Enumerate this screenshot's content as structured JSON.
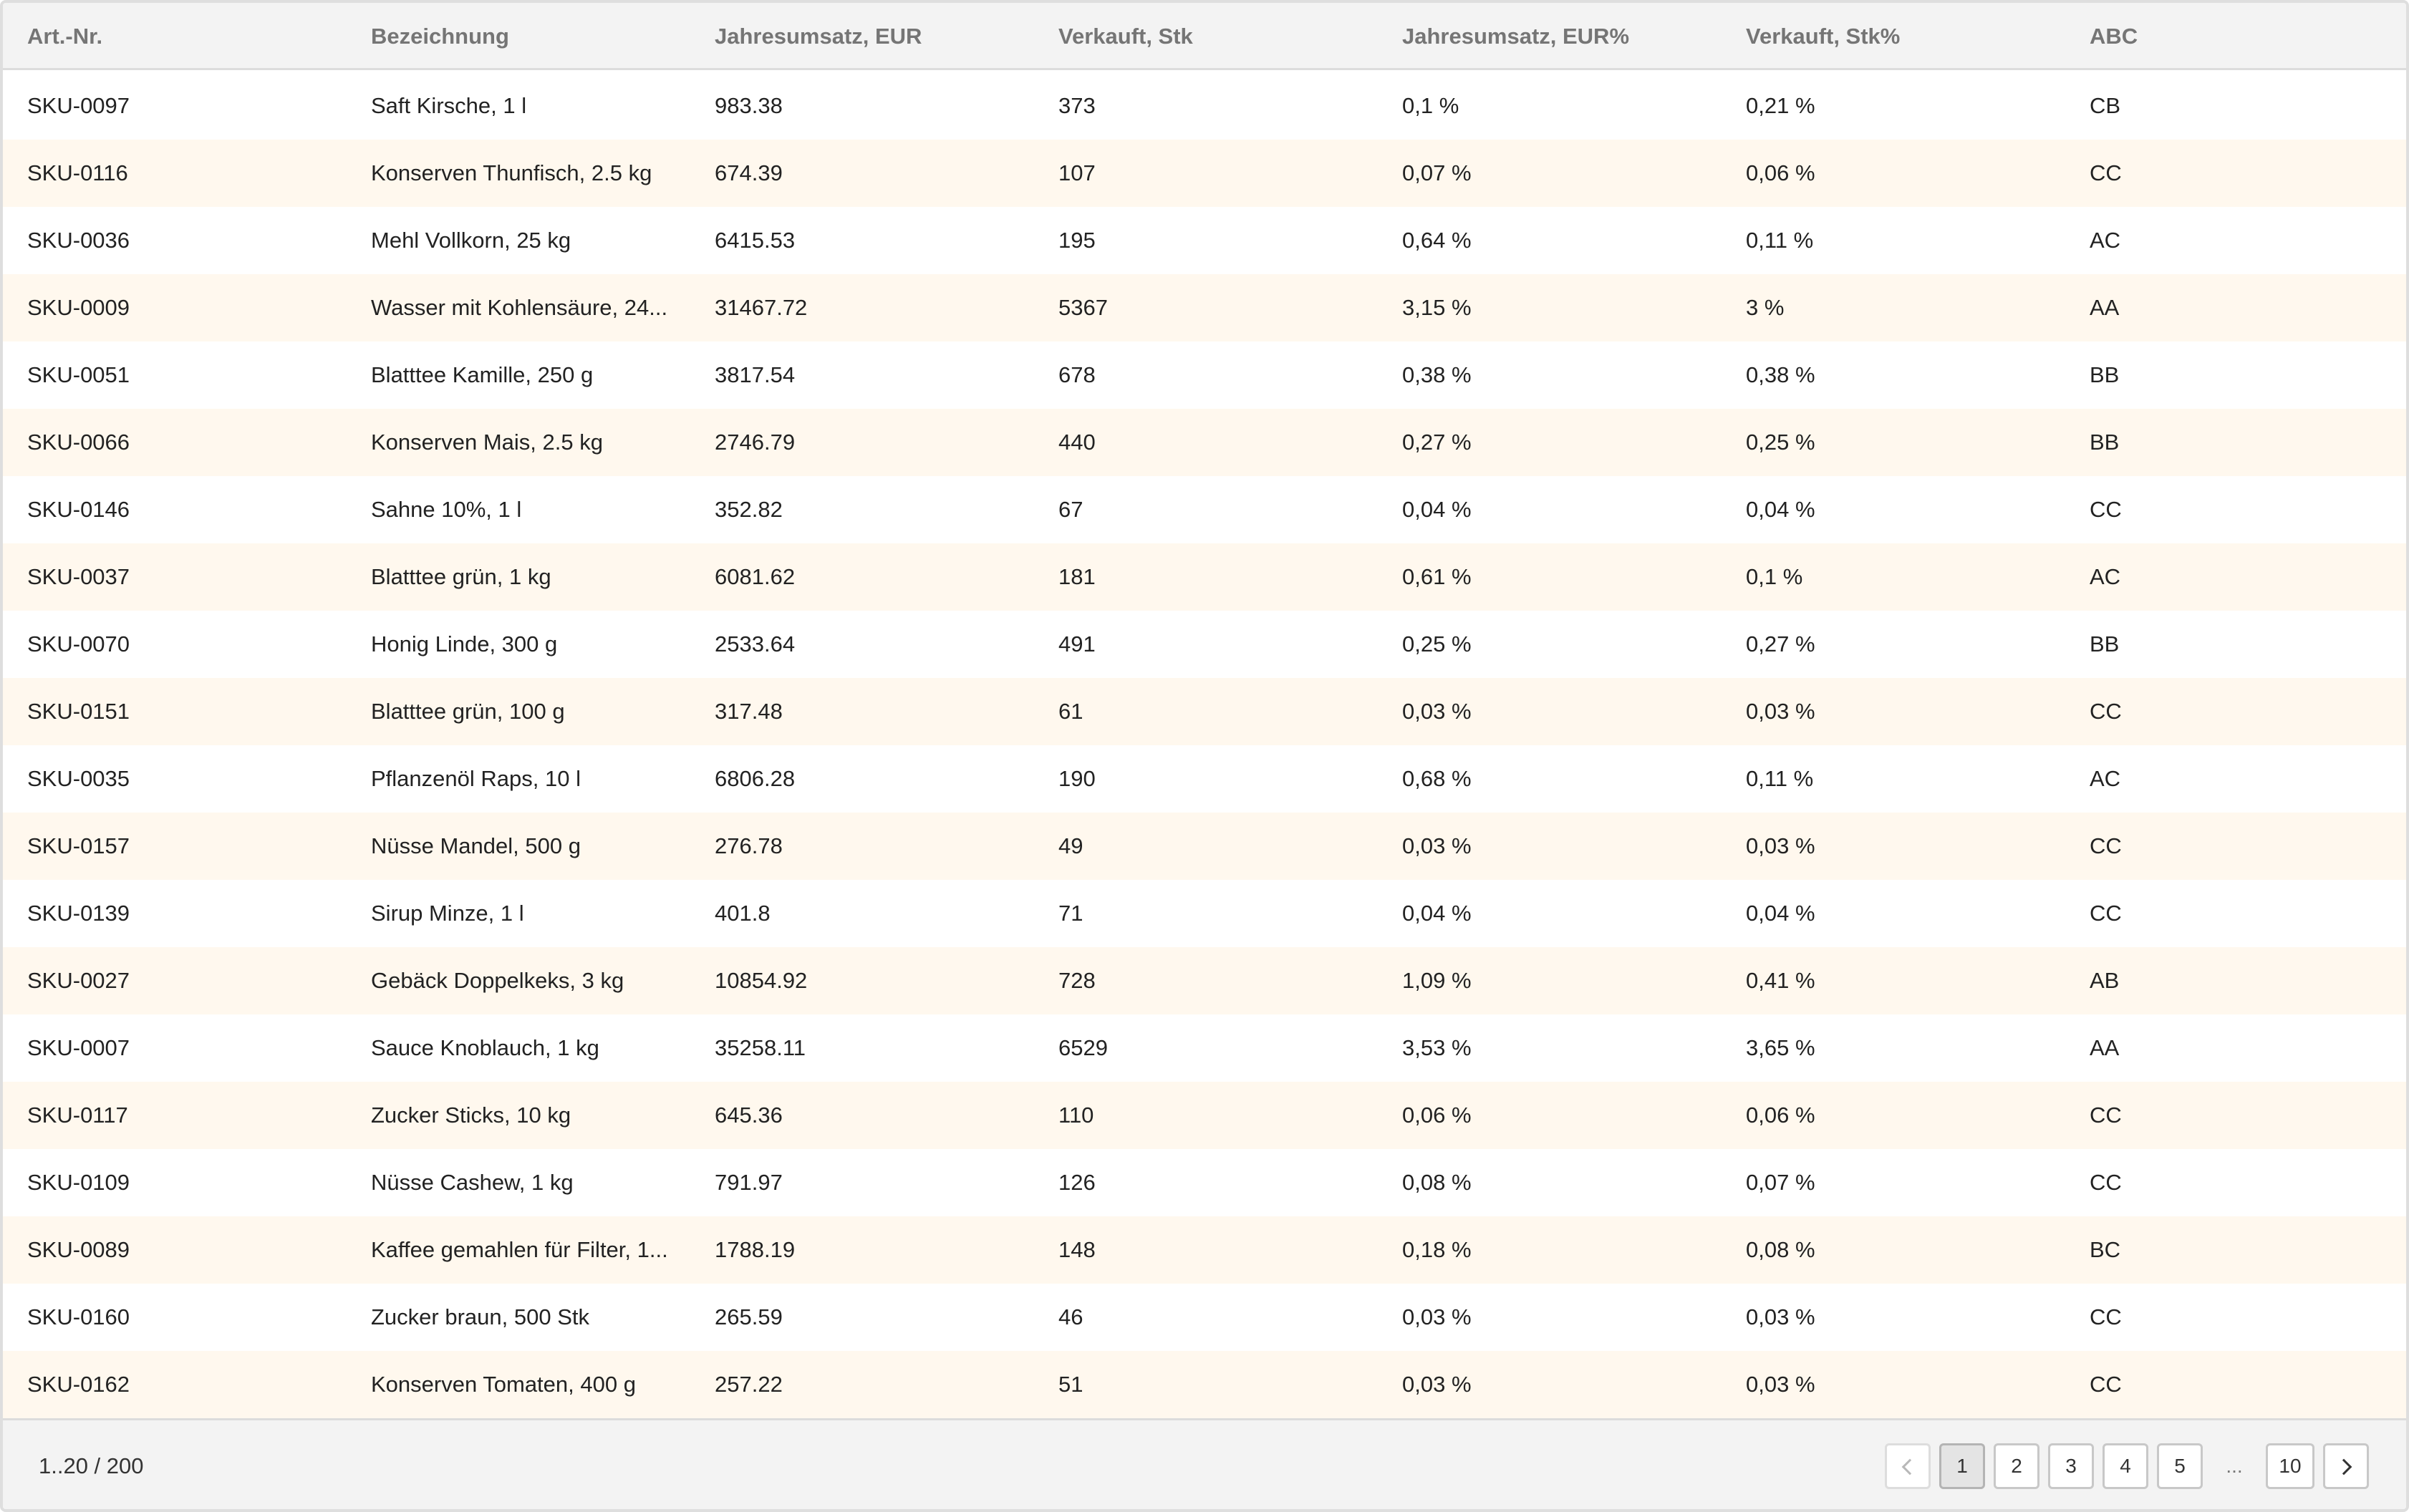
{
  "table": {
    "columns": [
      "Art.-Nr.",
      "Bezeichnung",
      "Jahresumsatz, EUR",
      "Verkauft, Stk",
      "Jahresumsatz, EUR%",
      "Verkauft, Stk%",
      "ABC"
    ],
    "rows": [
      [
        "SKU-0097",
        "Saft Kirsche, 1 l",
        "983.38",
        "373",
        "0,1 %",
        "0,21 %",
        "CB"
      ],
      [
        "SKU-0116",
        "Konserven Thunfisch, 2.5 kg",
        "674.39",
        "107",
        "0,07 %",
        "0,06 %",
        "CC"
      ],
      [
        "SKU-0036",
        "Mehl Vollkorn, 25 kg",
        "6415.53",
        "195",
        "0,64 %",
        "0,11 %",
        "AC"
      ],
      [
        "SKU-0009",
        "Wasser mit Kohlensäure, 24...",
        "31467.72",
        "5367",
        "3,15 %",
        "3 %",
        "AA"
      ],
      [
        "SKU-0051",
        "Blatttee Kamille, 250 g",
        "3817.54",
        "678",
        "0,38 %",
        "0,38 %",
        "BB"
      ],
      [
        "SKU-0066",
        "Konserven Mais, 2.5 kg",
        "2746.79",
        "440",
        "0,27 %",
        "0,25 %",
        "BB"
      ],
      [
        "SKU-0146",
        "Sahne 10%, 1 l",
        "352.82",
        "67",
        "0,04 %",
        "0,04 %",
        "CC"
      ],
      [
        "SKU-0037",
        "Blatttee grün, 1 kg",
        "6081.62",
        "181",
        "0,61 %",
        "0,1 %",
        "AC"
      ],
      [
        "SKU-0070",
        "Honig Linde, 300 g",
        "2533.64",
        "491",
        "0,25 %",
        "0,27 %",
        "BB"
      ],
      [
        "SKU-0151",
        "Blatttee grün, 100 g",
        "317.48",
        "61",
        "0,03 %",
        "0,03 %",
        "CC"
      ],
      [
        "SKU-0035",
        "Pflanzenöl Raps, 10 l",
        "6806.28",
        "190",
        "0,68 %",
        "0,11 %",
        "AC"
      ],
      [
        "SKU-0157",
        "Nüsse Mandel, 500 g",
        "276.78",
        "49",
        "0,03 %",
        "0,03 %",
        "CC"
      ],
      [
        "SKU-0139",
        "Sirup Minze, 1 l",
        "401.8",
        "71",
        "0,04 %",
        "0,04 %",
        "CC"
      ],
      [
        "SKU-0027",
        "Gebäck Doppelkeks, 3 kg",
        "10854.92",
        "728",
        "1,09 %",
        "0,41 %",
        "AB"
      ],
      [
        "SKU-0007",
        "Sauce Knoblauch, 1 kg",
        "35258.11",
        "6529",
        "3,53 %",
        "3,65 %",
        "AA"
      ],
      [
        "SKU-0117",
        "Zucker Sticks, 10 kg",
        "645.36",
        "110",
        "0,06 %",
        "0,06 %",
        "CC"
      ],
      [
        "SKU-0109",
        "Nüsse Cashew, 1 kg",
        "791.97",
        "126",
        "0,08 %",
        "0,07 %",
        "CC"
      ],
      [
        "SKU-0089",
        "Kaffee gemahlen für Filter, 1...",
        "1788.19",
        "148",
        "0,18 %",
        "0,08 %",
        "BC"
      ],
      [
        "SKU-0160",
        "Zucker braun, 500 Stk",
        "265.59",
        "46",
        "0,03 %",
        "0,03 %",
        "CC"
      ],
      [
        "SKU-0162",
        "Konserven Tomaten, 400 g",
        "257.22",
        "51",
        "0,03 %",
        "0,03 %",
        "CC"
      ]
    ]
  },
  "footer": {
    "summary": "1..20 / 200",
    "pages": [
      "1",
      "2",
      "3",
      "4",
      "5"
    ],
    "ellipsis": "...",
    "last_page": "10",
    "active_page": "1"
  },
  "icons": {
    "prev": "chevron-left-icon",
    "next": "chevron-right-icon"
  },
  "colors": {
    "header_bg": "#f3f3f3",
    "row_alt_bg": "#fff8ee",
    "border": "#dedede"
  }
}
